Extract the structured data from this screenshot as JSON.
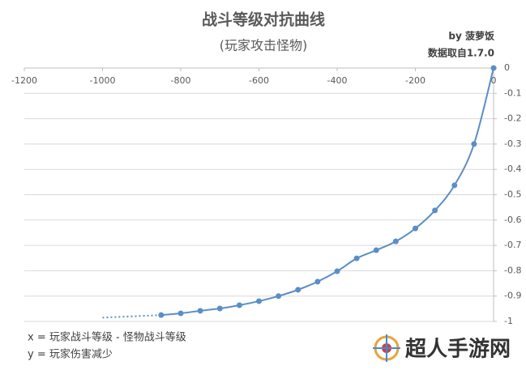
{
  "chart_data": {
    "type": "line",
    "title": "战斗等级对抗曲线",
    "subtitle": "(玩家攻击怪物)",
    "annotations": [
      "by 菠萝饭",
      "数据取自1.7.0",
      "x = 玩家战斗等级 - 怪物战斗等级",
      "y = 玩家伤害减少",
      "超人手游网"
    ],
    "series": [
      {
        "color": "#5b8ec6",
        "style": "solid",
        "markers": true,
        "x": [
          -850,
          -800,
          -750,
          -700,
          -650,
          -600,
          -550,
          -500,
          -450,
          -400,
          -350,
          -300,
          -250,
          -200,
          -150,
          -100,
          -50,
          0
        ],
        "values": [
          -0.975,
          -0.968,
          -0.958,
          -0.949,
          -0.936,
          -0.92,
          -0.9,
          -0.875,
          -0.843,
          -0.802,
          -0.751,
          -0.719,
          -0.684,
          -0.633,
          -0.562,
          -0.463,
          -0.3,
          0
        ]
      },
      {
        "color": "#5b8ec6",
        "style": "dotted",
        "markers": false,
        "x": [
          -1000,
          -850
        ],
        "values": [
          -0.985,
          -0.975
        ]
      }
    ],
    "xlim": [
      -1200,
      0
    ],
    "xticks": [
      -1200,
      -1000,
      -800,
      -600,
      -400,
      -200,
      0
    ],
    "ylim": [
      -1,
      0
    ],
    "yticks": [
      0,
      -0.1,
      -0.2,
      -0.3,
      -0.4,
      -0.5,
      -0.6,
      -0.7,
      -0.8,
      -0.9,
      -1
    ],
    "grid": true
  }
}
